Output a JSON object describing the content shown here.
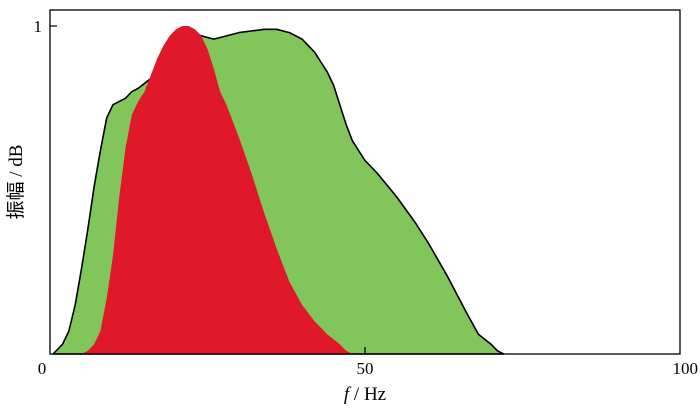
{
  "chart_data": {
    "type": "area",
    "title": "",
    "xlabel": {
      "var": "f",
      "unit": " / Hz"
    },
    "ylabel": "振幅 / dB",
    "xlim": [
      0,
      100
    ],
    "ylim": [
      0,
      1
    ],
    "x_ticks": [
      0,
      50,
      100
    ],
    "y_ticks": [
      1
    ],
    "grid": false,
    "legend": "none",
    "series": [
      {
        "color": "#82c55a",
        "outline": "#000000",
        "x": [
          0.5,
          2,
          3,
          4,
          5,
          6,
          7,
          8,
          9,
          10,
          11,
          12,
          13,
          14,
          16,
          18,
          19,
          20,
          21,
          22,
          24,
          26,
          30,
          34,
          36,
          38,
          40,
          42,
          44,
          45,
          46,
          47,
          48,
          50,
          52,
          55,
          58,
          60,
          63,
          66,
          68,
          70,
          71,
          72
        ],
        "y": [
          0.0,
          0.03,
          0.07,
          0.15,
          0.26,
          0.38,
          0.51,
          0.62,
          0.72,
          0.76,
          0.77,
          0.78,
          0.8,
          0.81,
          0.84,
          0.86,
          0.89,
          0.94,
          0.98,
          0.99,
          0.97,
          0.96,
          0.98,
          0.99,
          0.99,
          0.98,
          0.96,
          0.92,
          0.86,
          0.82,
          0.76,
          0.7,
          0.65,
          0.59,
          0.55,
          0.48,
          0.4,
          0.34,
          0.24,
          0.13,
          0.06,
          0.03,
          0.01,
          0.0
        ]
      },
      {
        "color": "#e0192a",
        "outline": "none",
        "x": [
          5,
          6,
          7,
          8,
          9,
          10,
          11,
          12,
          13,
          14,
          15,
          16,
          17,
          18,
          19,
          20,
          21,
          22,
          23,
          24,
          25,
          26,
          27,
          28,
          29,
          30,
          32,
          34,
          36,
          38,
          40,
          42,
          44,
          46,
          47,
          48
        ],
        "y": [
          0.0,
          0.01,
          0.03,
          0.07,
          0.17,
          0.3,
          0.48,
          0.63,
          0.73,
          0.77,
          0.8,
          0.85,
          0.9,
          0.94,
          0.97,
          0.99,
          1.0,
          1.0,
          0.99,
          0.97,
          0.93,
          0.87,
          0.8,
          0.76,
          0.71,
          0.66,
          0.55,
          0.43,
          0.32,
          0.22,
          0.15,
          0.1,
          0.06,
          0.03,
          0.01,
          0.0
        ]
      }
    ]
  }
}
